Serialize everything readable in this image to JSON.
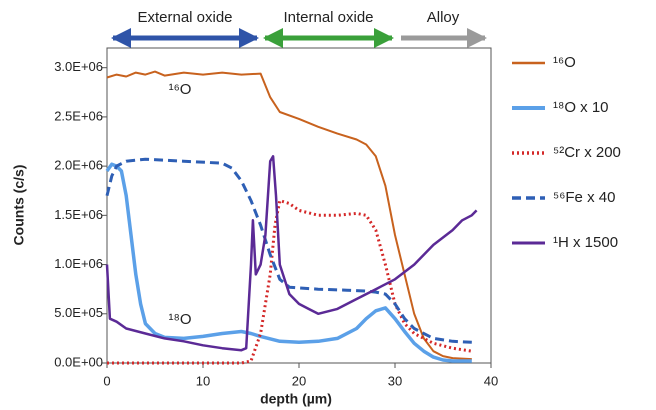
{
  "chart_data": {
    "type": "line",
    "xlabel": "depth (µm)",
    "ylabel": "Counts (c/s)",
    "xlim": [
      0,
      40
    ],
    "ylim": [
      0,
      3200000
    ],
    "xticks": [
      0,
      10,
      20,
      30,
      40
    ],
    "yticks": [
      {
        "value": 0,
        "label": "0.0E+00"
      },
      {
        "value": 500000,
        "label": "5.0E+05"
      },
      {
        "value": 1000000,
        "label": "1.0E+06"
      },
      {
        "value": 1500000,
        "label": "1.5E+06"
      },
      {
        "value": 2000000,
        "label": "2.0E+06"
      },
      {
        "value": 2500000,
        "label": "2.5E+06"
      },
      {
        "value": 3000000,
        "label": "3.0E+06"
      }
    ],
    "regions": [
      {
        "label": "External oxide",
        "color": "#2f54a8"
      },
      {
        "label": "Internal oxide",
        "color": "#3aa03a"
      },
      {
        "label": "Alloy",
        "color": "#9a9a9a"
      }
    ],
    "annotations": [
      "¹⁶O",
      "¹⁸O"
    ],
    "series": [
      {
        "name": "¹⁶O",
        "color": "#c8621e",
        "style": "solid",
        "width": 2,
        "x": [
          0,
          1,
          2,
          3,
          4,
          5,
          6,
          8,
          10,
          12,
          14,
          16,
          17,
          18,
          20,
          22,
          24,
          26,
          27,
          28,
          29,
          30,
          31,
          32,
          33,
          34,
          35,
          36,
          38
        ],
        "values": [
          2900000,
          2930000,
          2910000,
          2950000,
          2930000,
          2960000,
          2920000,
          2950000,
          2930000,
          2950000,
          2930000,
          2940000,
          2700000,
          2550000,
          2480000,
          2400000,
          2330000,
          2270000,
          2220000,
          2100000,
          1800000,
          1300000,
          900000,
          500000,
          250000,
          120000,
          70000,
          50000,
          40000
        ]
      },
      {
        "name": "¹⁸O x 10",
        "color": "#5ba0e8",
        "style": "solid",
        "width": 3.5,
        "x": [
          0,
          0.5,
          1,
          1.5,
          2,
          2.5,
          3,
          3.5,
          4,
          5,
          6,
          8,
          10,
          12,
          14,
          15,
          16,
          18,
          20,
          22,
          24,
          26,
          27,
          28,
          29,
          30,
          31,
          32,
          33,
          34,
          35,
          36,
          38
        ],
        "values": [
          1950000,
          2020000,
          2000000,
          1950000,
          1700000,
          1300000,
          900000,
          600000,
          400000,
          300000,
          260000,
          250000,
          270000,
          300000,
          320000,
          300000,
          270000,
          220000,
          210000,
          220000,
          250000,
          350000,
          450000,
          530000,
          560000,
          450000,
          320000,
          200000,
          120000,
          60000,
          30000,
          20000,
          20000
        ]
      },
      {
        "name": "⁵²Cr x 200",
        "color": "#d42828",
        "style": "dotted",
        "width": 3,
        "x": [
          0,
          4,
          8,
          12,
          14,
          15,
          16,
          17,
          17.5,
          18,
          19,
          20,
          22,
          24,
          26,
          27,
          28,
          29,
          30,
          31,
          32,
          34,
          36,
          38
        ],
        "values": [
          0,
          0,
          0,
          0,
          0,
          20000,
          300000,
          900000,
          1400000,
          1650000,
          1620000,
          1550000,
          1500000,
          1500000,
          1520000,
          1500000,
          1350000,
          1000000,
          600000,
          400000,
          300000,
          200000,
          150000,
          120000
        ]
      },
      {
        "name": "⁵⁶Fe x 40",
        "color": "#2e5fb5",
        "style": "dashed",
        "width": 3,
        "x": [
          0,
          0.5,
          1,
          2,
          4,
          8,
          12,
          13,
          14,
          15,
          16,
          17,
          18,
          19,
          22,
          25,
          27,
          28,
          29,
          30,
          31,
          32,
          34,
          36,
          38
        ],
        "values": [
          1700000,
          1900000,
          2000000,
          2050000,
          2070000,
          2050000,
          2030000,
          1980000,
          1850000,
          1650000,
          1400000,
          1100000,
          850000,
          770000,
          750000,
          740000,
          730000,
          720000,
          700000,
          600000,
          450000,
          350000,
          250000,
          220000,
          210000
        ]
      },
      {
        "name": "¹H x 1500",
        "color": "#5b2a96",
        "style": "solid",
        "width": 2.5,
        "x": [
          0,
          0.3,
          1,
          2,
          4,
          6,
          8,
          10,
          12,
          14,
          14.5,
          15,
          15.2,
          15.5,
          16,
          16.5,
          17,
          17.3,
          17.6,
          18,
          19,
          20,
          21,
          22,
          24,
          26,
          28,
          30,
          32,
          34,
          36,
          37,
          38,
          38.5
        ],
        "values": [
          1000000,
          450000,
          420000,
          350000,
          300000,
          250000,
          220000,
          180000,
          150000,
          130000,
          150000,
          1000000,
          1450000,
          900000,
          1000000,
          1300000,
          2050000,
          2100000,
          1700000,
          1000000,
          700000,
          600000,
          550000,
          500000,
          550000,
          650000,
          750000,
          850000,
          1000000,
          1200000,
          1350000,
          1450000,
          1500000,
          1550000
        ]
      }
    ]
  }
}
